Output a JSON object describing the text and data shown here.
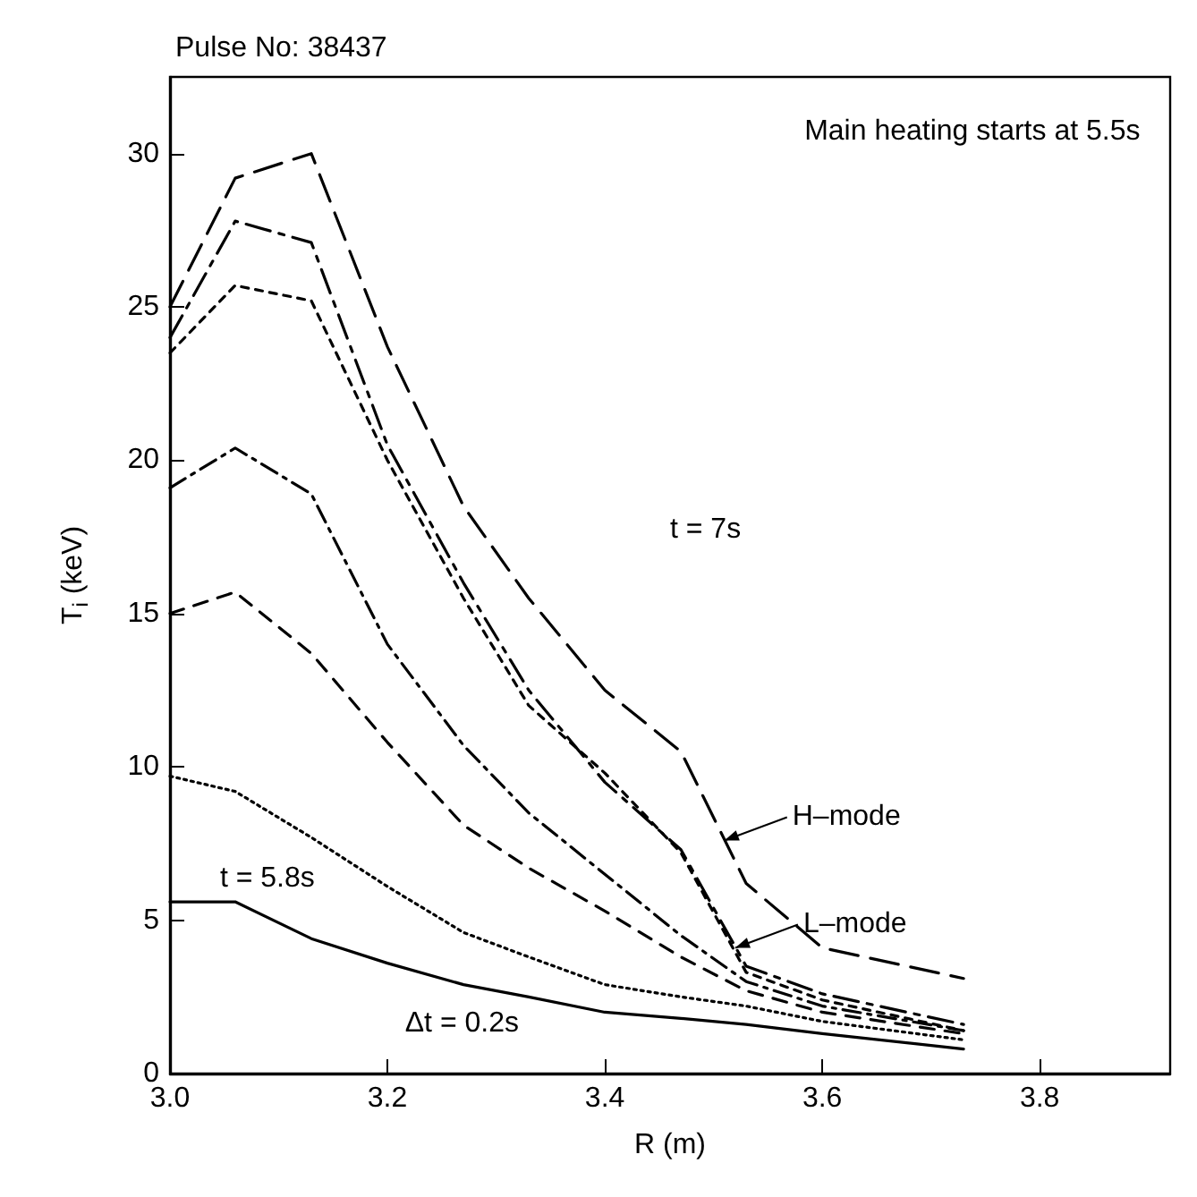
{
  "chart_data": {
    "type": "line",
    "title": "Pulse No: 38437",
    "xlabel": "R (m)",
    "ylabel": "T$_{i}$ (keV)",
    "x": [
      3.0,
      3.06,
      3.13,
      3.2,
      3.27,
      3.33,
      3.4,
      3.47,
      3.53,
      3.6,
      3.73
    ],
    "xlim": [
      3.0,
      3.92
    ],
    "ylim": [
      0,
      32.5
    ],
    "xticks": [
      {
        "value": 3.0,
        "label": "3.0"
      },
      {
        "value": 3.2,
        "label": "3.2"
      },
      {
        "value": 3.4,
        "label": "3.4"
      },
      {
        "value": 3.6,
        "label": "3.6"
      },
      {
        "value": 3.8,
        "label": "3.8"
      }
    ],
    "yticks": [
      0,
      5,
      10,
      15,
      20,
      25,
      30
    ],
    "grid": false,
    "marker": "none",
    "series": [
      {
        "color": "#000000",
        "line_style": "dashed",
        "values": [
          25,
          29.2,
          30,
          23.7,
          18.5,
          15.5,
          12.5,
          10.5,
          6.2,
          4.1,
          3.1
        ]
      },
      {
        "color": "#000000",
        "line_style": "dashed",
        "values": [
          24,
          27.8,
          27.1,
          20.5,
          16,
          12.5,
          9.5,
          7.3,
          3.5,
          2.6,
          1.6
        ]
      },
      {
        "color": "#000000",
        "line_style": "dashed",
        "values": [
          23.5,
          25.7,
          25.2,
          20,
          15.5,
          12,
          9.8,
          7.2,
          3.3,
          2.4,
          1.4
        ]
      },
      {
        "color": "#000000",
        "line_style": "dashed",
        "values": [
          19.1,
          20.4,
          18.9,
          14,
          10.7,
          8.5,
          6.5,
          4.5,
          3.0,
          2.2,
          1.4
        ]
      },
      {
        "color": "#000000",
        "line_style": "dashed",
        "values": [
          15,
          15.7,
          13.7,
          10.8,
          8.1,
          6.7,
          5.3,
          3.8,
          2.7,
          2.0,
          1.3
        ]
      },
      {
        "color": "#000000",
        "line_style": "dotted",
        "values": [
          9.7,
          9.2,
          7.7,
          6.1,
          4.6,
          3.8,
          2.9,
          2.5,
          2.2,
          1.7,
          1.1
        ]
      },
      {
        "color": "#000000",
        "line_style": "solid",
        "values": [
          5.6,
          5.6,
          4.4,
          3.6,
          2.9,
          2.5,
          2.0,
          1.8,
          1.6,
          1.3,
          0.8
        ]
      }
    ],
    "annotations": [
      "Main heating starts at 5.5s",
      "t = 7s",
      {
        "text": "H–mode",
        "x": 3.51,
        "y": 7.6
      },
      {
        "text": "L–mode",
        "x": 3.52,
        "y": 4.1
      },
      "t = 5.8s",
      "Δt = 0.2s"
    ]
  }
}
